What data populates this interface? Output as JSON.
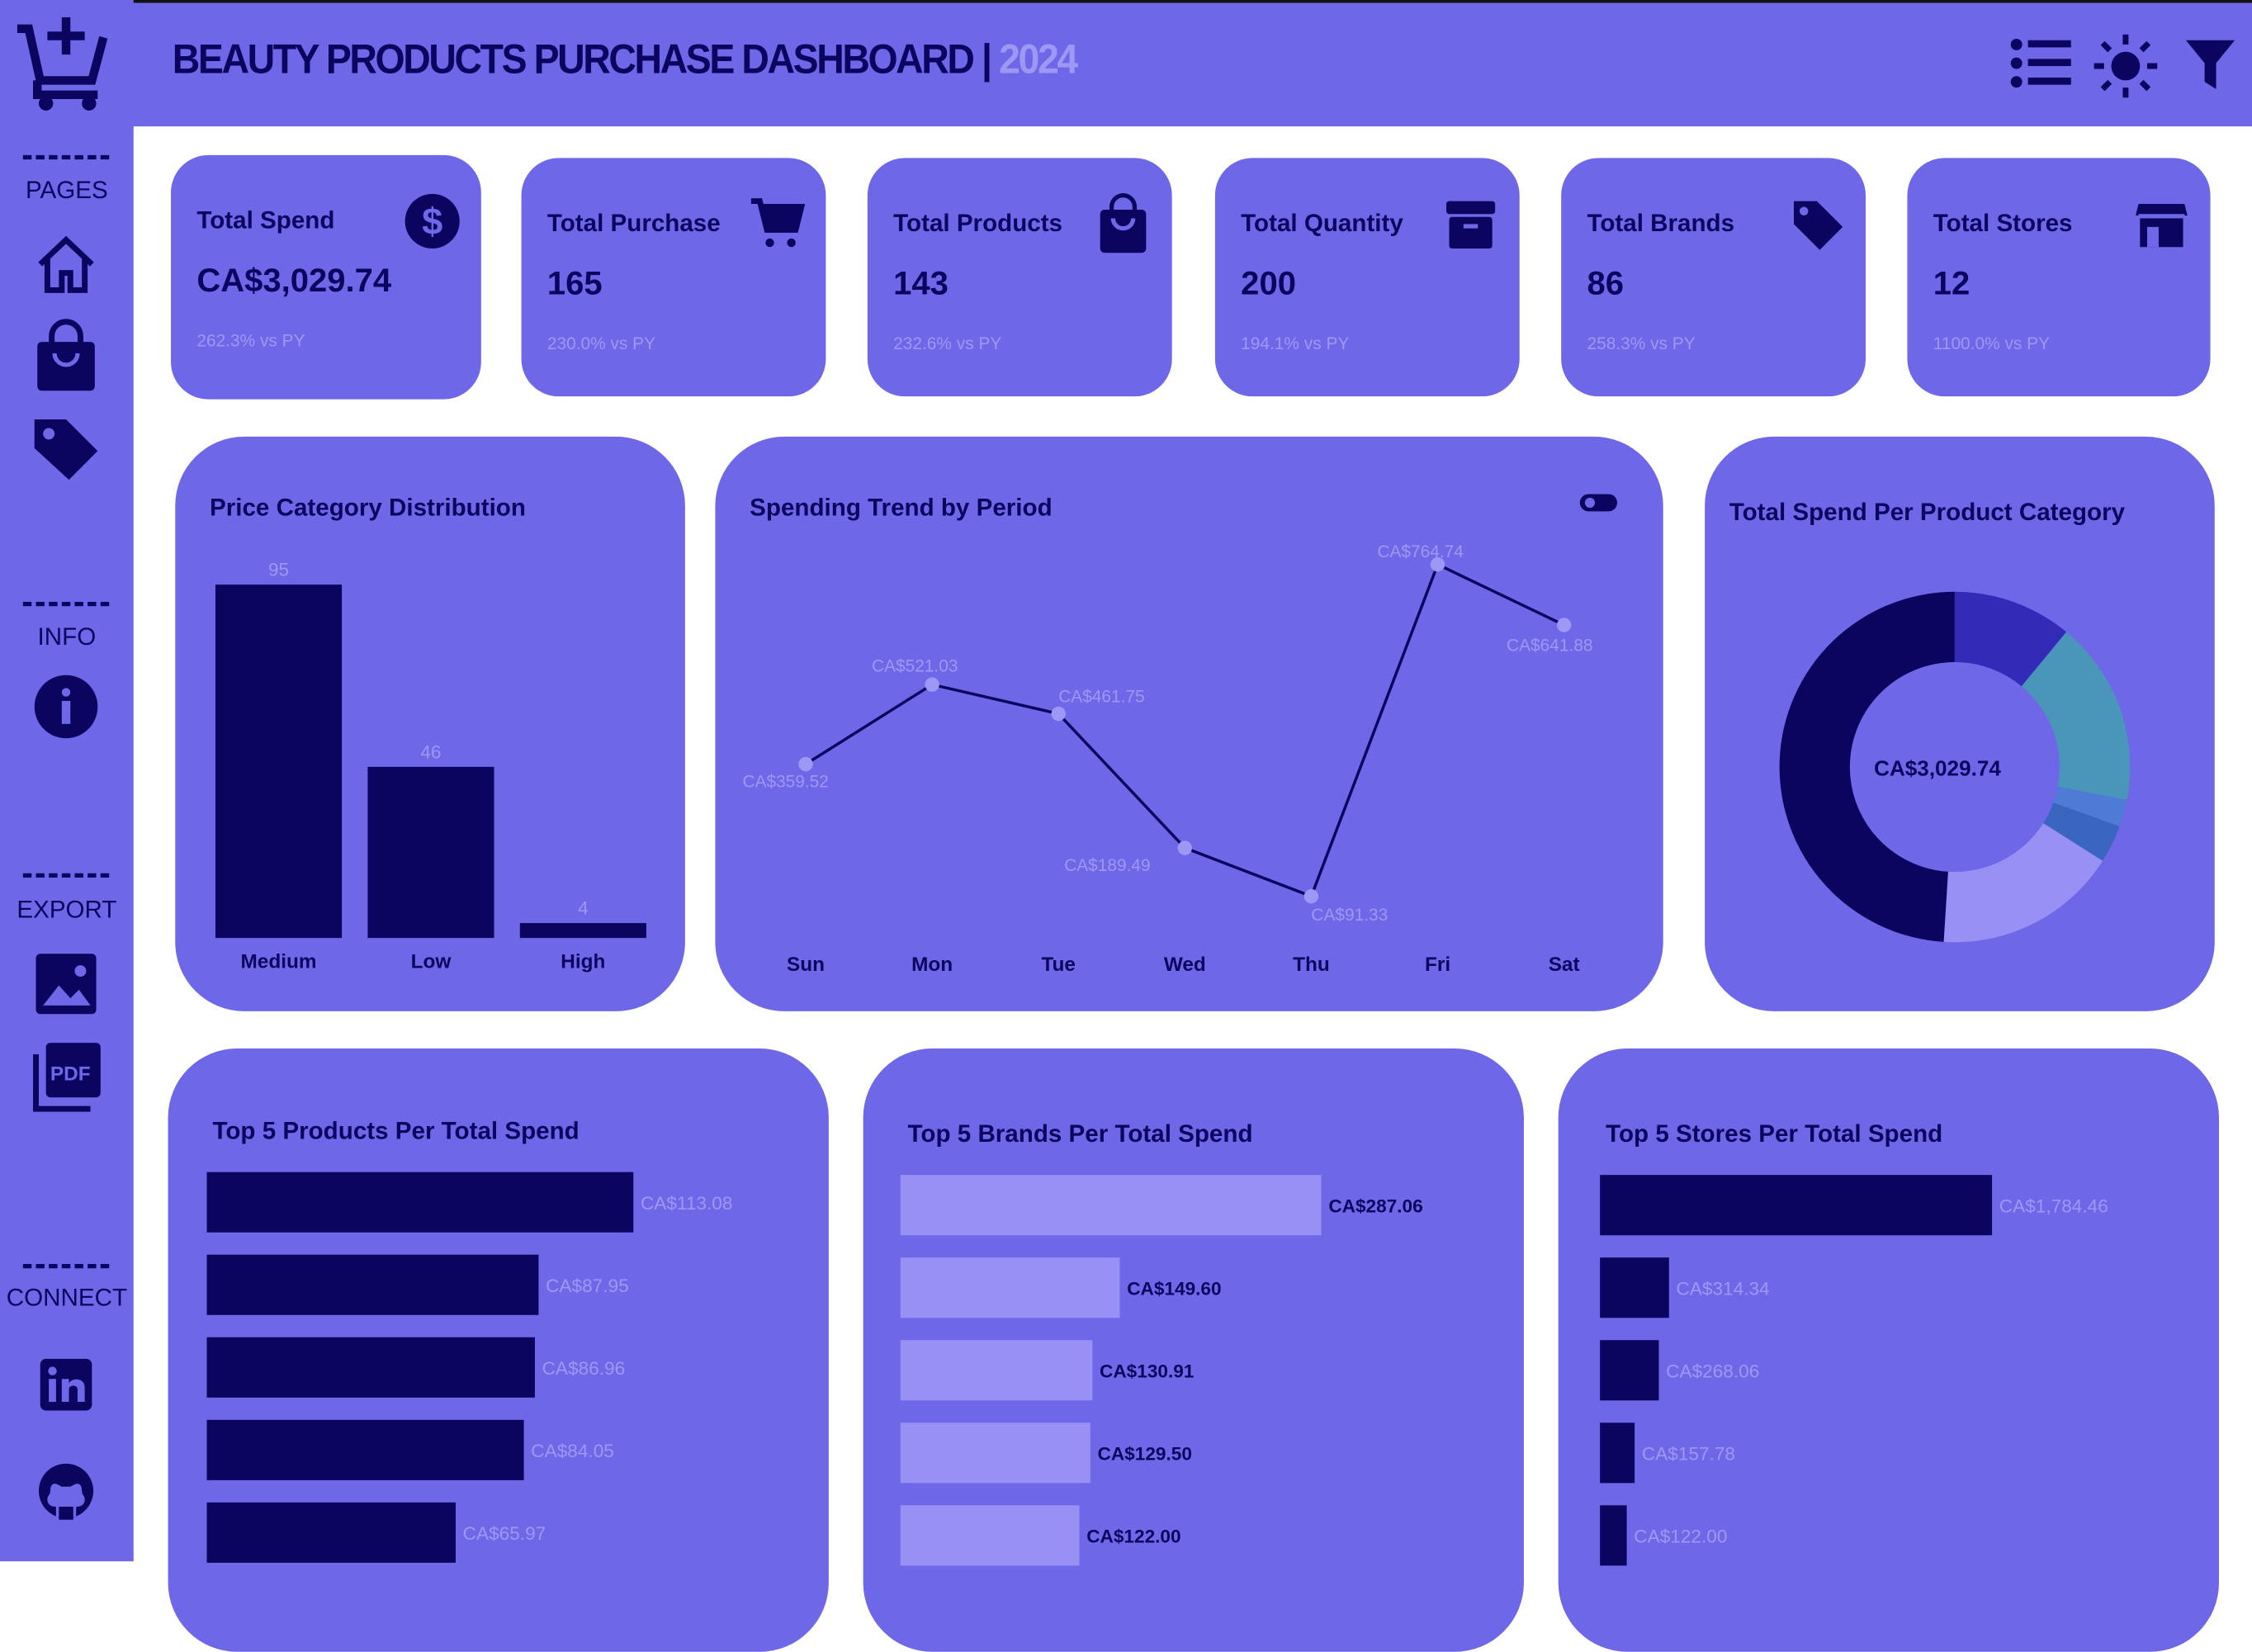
{
  "header": {
    "title": "BEAUTY PRODUCTS PURCHASE DASHBOARD |",
    "year": "2024",
    "icons": [
      "list-icon",
      "sun-icon",
      "filter-icon"
    ]
  },
  "sidebar": {
    "logo": "cart-plus-icon",
    "sections": [
      {
        "label": "PAGES",
        "icons": [
          "home-icon",
          "shopping-bag-icon",
          "tag-icon"
        ]
      },
      {
        "label": "INFO",
        "icons": [
          "info-icon"
        ]
      },
      {
        "label": "EXPORT",
        "icons": [
          "image-icon",
          "pdf-icon"
        ]
      },
      {
        "label": "CONNECT",
        "icons": [
          "linkedin-icon",
          "github-icon"
        ]
      }
    ]
  },
  "colors": {
    "panel": "#6e68e8",
    "navy": "#0b0560",
    "light": "#9d97f5",
    "lavender": "#9890f5"
  },
  "kpis": [
    {
      "label": "Total Spend",
      "value": "CA$3,029.74",
      "change": "262.3% vs PY",
      "icon": "dollar-icon"
    },
    {
      "label": "Total Purchase",
      "value": "165",
      "change": "230.0% vs PY",
      "icon": "cart-icon"
    },
    {
      "label": "Total Products",
      "value": "143",
      "change": "232.6% vs PY",
      "icon": "shopping-bag-icon"
    },
    {
      "label": "Total Quantity",
      "value": "200",
      "change": "194.1% vs PY",
      "icon": "archive-icon"
    },
    {
      "label": "Total Brands",
      "value": "86",
      "change": "258.3% vs PY",
      "icon": "tag-icon"
    },
    {
      "label": "Total Stores",
      "value": "12",
      "change": "1100.0% vs PY",
      "icon": "store-icon"
    }
  ],
  "chart_data": [
    {
      "type": "bar",
      "title": "Price Category Distribution",
      "categories": [
        "Medium",
        "Low",
        "High"
      ],
      "values": [
        95,
        46,
        4
      ],
      "labels": [
        "95",
        "46",
        "4"
      ]
    },
    {
      "type": "line",
      "title": "Spending Trend by Period",
      "categories": [
        "Sun",
        "Mon",
        "Tue",
        "Wed",
        "Thu",
        "Fri",
        "Sat"
      ],
      "values": [
        359.52,
        521.03,
        461.75,
        189.49,
        91.33,
        764.74,
        641.88
      ],
      "labels": [
        "CA$359.52",
        "CA$521.03",
        "CA$461.75",
        "CA$189.49",
        "CA$91.33",
        "CA$764.74",
        "CA$641.88"
      ],
      "toggle": "toggle-icon"
    },
    {
      "type": "pie",
      "title": "Total Spend Per Product Category",
      "center_label": "CA$3,029.74",
      "shares_percent": [
        11,
        17,
        2.5,
        3.5,
        17,
        49
      ],
      "colors": [
        "#322bb8",
        "#4a96bb",
        "#4f7ad6",
        "#3a66c0",
        "#9890f5",
        "#0b0560"
      ]
    },
    {
      "type": "bar",
      "orientation": "horizontal",
      "title": "Top 5 Products Per Total Spend",
      "values": [
        113.08,
        87.95,
        86.96,
        84.05,
        65.97
      ],
      "labels": [
        "CA$113.08",
        "CA$87.95",
        "CA$86.96",
        "CA$84.05",
        "CA$65.97"
      ],
      "bar_color": "#0b0560",
      "label_color": "#9d97f5"
    },
    {
      "type": "bar",
      "orientation": "horizontal",
      "title": "Top 5 Brands Per Total Spend",
      "values": [
        287.06,
        149.6,
        130.91,
        129.5,
        122.0
      ],
      "labels": [
        "CA$287.06",
        "CA$149.60",
        "CA$130.91",
        "CA$129.50",
        "CA$122.00"
      ],
      "bar_color": "#9890f5",
      "label_color": "#0b0560"
    },
    {
      "type": "bar",
      "orientation": "horizontal",
      "title": "Top 5 Stores Per Total Spend",
      "values": [
        1784.46,
        314.34,
        268.06,
        157.78,
        122.0
      ],
      "labels": [
        "CA$1,784.46",
        "CA$314.34",
        "CA$268.06",
        "CA$157.78",
        "CA$122.00"
      ],
      "bar_color": "#0b0560",
      "label_color": "#9d97f5"
    }
  ]
}
